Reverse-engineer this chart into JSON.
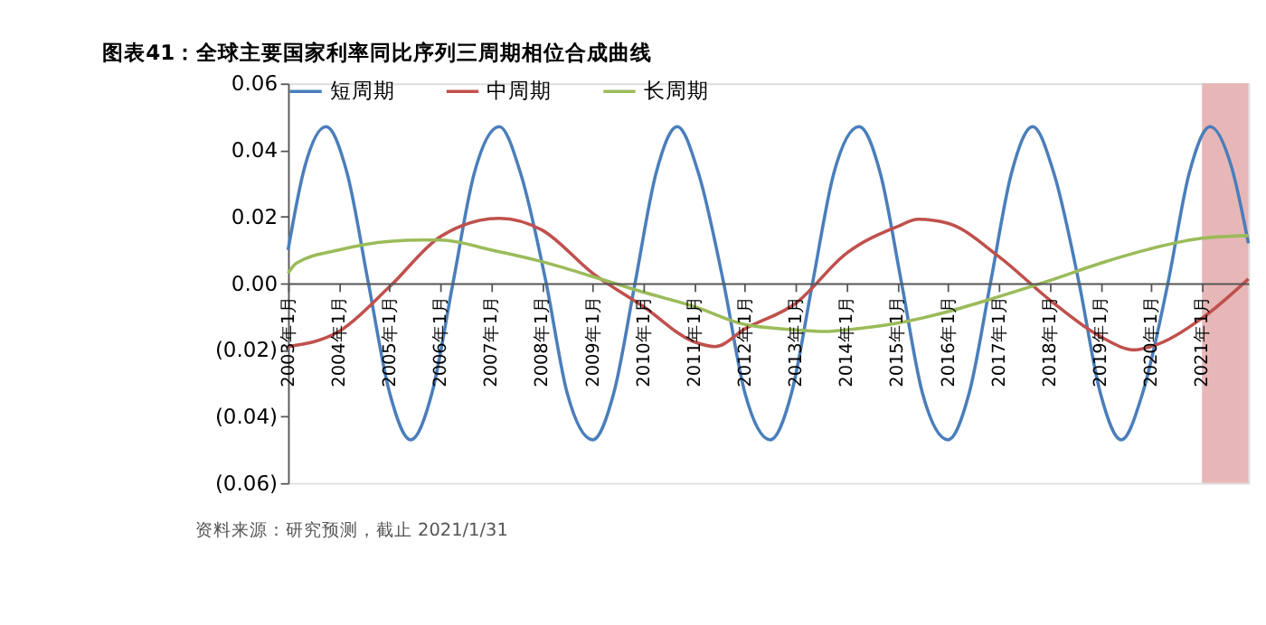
{
  "chart_data": {
    "type": "line",
    "title": "图表41：全球主要国家利率同比序列三周期相位合成曲线",
    "annotations": [
      "资料来源：研究预测，截止 2021/1/31"
    ],
    "legend": "top",
    "grid": false,
    "line_style": "solid",
    "marker": "none",
    "ylim": [
      -0.06,
      0.06
    ],
    "yticks": [
      {
        "value": 0.06,
        "label": "0.06"
      },
      {
        "value": 0.04,
        "label": "0.04"
      },
      {
        "value": 0.02,
        "label": "0.02"
      },
      {
        "value": 0,
        "label": "0.00"
      },
      {
        "value": -0.02,
        "label": "(0.02)"
      },
      {
        "value": -0.04,
        "label": "(0.04)"
      },
      {
        "value": -0.06,
        "label": "(0.06)"
      }
    ],
    "xlim": [
      "2003-01",
      "2021-12"
    ],
    "xticks": [
      {
        "value": "2003-01",
        "label": "2003年1月"
      },
      {
        "value": "2004-01",
        "label": "2004年1月"
      },
      {
        "value": "2005-01",
        "label": "2005年1月"
      },
      {
        "value": "2006-01",
        "label": "2006年1月"
      },
      {
        "value": "2007-01",
        "label": "2007年1月"
      },
      {
        "value": "2008-01",
        "label": "2008年1月"
      },
      {
        "value": "2009-01",
        "label": "2009年1月"
      },
      {
        "value": "2010-01",
        "label": "2010年1月"
      },
      {
        "value": "2011-01",
        "label": "2011年1月"
      },
      {
        "value": "2012-01",
        "label": "2012年1月"
      },
      {
        "value": "2013-01",
        "label": "2013年1月"
      },
      {
        "value": "2014-01",
        "label": "2014年1月"
      },
      {
        "value": "2015-01",
        "label": "2015年1月"
      },
      {
        "value": "2016-01",
        "label": "2016年1月"
      },
      {
        "value": "2017-01",
        "label": "2017年1月"
      },
      {
        "value": "2018-01",
        "label": "2018年1月"
      },
      {
        "value": "2019-01",
        "label": "2019年1月"
      },
      {
        "value": "2020-01",
        "label": "2020年1月"
      },
      {
        "value": "2021-01",
        "label": "2021年1月"
      }
    ],
    "bands": [
      {
        "axis": "x",
        "from": "2021-01",
        "to": "2021-12",
        "color": "#e6b3b3"
      }
    ],
    "series": [
      {
        "name": "短周期",
        "color": "#4a7ebb",
        "x": [
          "2003-01",
          "2003-05",
          "2003-10",
          "2004-03",
          "2004-08",
          "2005-01",
          "2005-06",
          "2005-11",
          "2006-04",
          "2006-09",
          "2007-03",
          "2007-08",
          "2008-02",
          "2008-07",
          "2009-01",
          "2009-06",
          "2009-11",
          "2010-04",
          "2010-09",
          "2011-02",
          "2011-08",
          "2012-01",
          "2012-07",
          "2012-12",
          "2013-05",
          "2013-10",
          "2014-04",
          "2014-09",
          "2015-02",
          "2015-07",
          "2016-01",
          "2016-06",
          "2016-11",
          "2017-04",
          "2017-09",
          "2018-02",
          "2018-08",
          "2019-01",
          "2019-06",
          "2019-11",
          "2020-05",
          "2020-10",
          "2021-03",
          "2021-08",
          "2021-12"
        ],
        "values": [
          0.01,
          0.035,
          0.047,
          0.033,
          0,
          -0.033,
          -0.047,
          -0.033,
          0,
          0.033,
          0.047,
          0.033,
          0,
          -0.033,
          -0.047,
          -0.033,
          0,
          0.033,
          0.047,
          0.033,
          0,
          -0.033,
          -0.047,
          -0.033,
          0,
          0.033,
          0.047,
          0.033,
          0,
          -0.033,
          -0.047,
          -0.033,
          0,
          0.033,
          0.047,
          0.033,
          0,
          -0.033,
          -0.047,
          -0.033,
          0,
          0.033,
          0.047,
          0.035,
          0.012
        ]
      },
      {
        "name": "中周期",
        "color": "#c0504d",
        "x": [
          "2003-01",
          "2004-01",
          "2005-01",
          "2006-01",
          "2007-03",
          "2008-01",
          "2009-01",
          "2010-01",
          "2011-01",
          "2011-06",
          "2012-01",
          "2013-01",
          "2014-01",
          "2015-01",
          "2015-06",
          "2016-01",
          "2017-01",
          "2018-01",
          "2019-01",
          "2019-09",
          "2020-01",
          "2021-01",
          "2021-12"
        ],
        "values": [
          -0.019,
          -0.0145,
          -0.001,
          0.014,
          0.0195,
          0.016,
          0.003,
          -0.007,
          -0.0176,
          -0.019,
          -0.0137,
          -0.006,
          0.009,
          0.017,
          0.0192,
          0.018,
          0.008,
          -0.005,
          -0.016,
          -0.02,
          -0.019,
          -0.0105,
          0.0013
        ]
      },
      {
        "name": "长周期",
        "color": "#9bbb59",
        "x": [
          "2003-01",
          "2003-03",
          "2004-01",
          "2005-01",
          "2005-09",
          "2006-01",
          "2007-01",
          "2008-01",
          "2009-01",
          "2010-01",
          "2011-01",
          "2012-01",
          "2013-01",
          "2013-08",
          "2014-01",
          "2015-01",
          "2016-01",
          "2017-01",
          "2018-01",
          "2019-01",
          "2020-01",
          "2021-01",
          "2021-12"
        ],
        "values": [
          0.003,
          0.006,
          0.01,
          0.0126,
          0.013,
          0.013,
          0.01,
          0.0065,
          0.002,
          -0.0027,
          -0.007,
          -0.0124,
          -0.014,
          -0.0145,
          -0.014,
          -0.012,
          -0.0085,
          -0.004,
          0.0008,
          0.006,
          0.0104,
          0.0135,
          0.0143
        ]
      }
    ]
  }
}
